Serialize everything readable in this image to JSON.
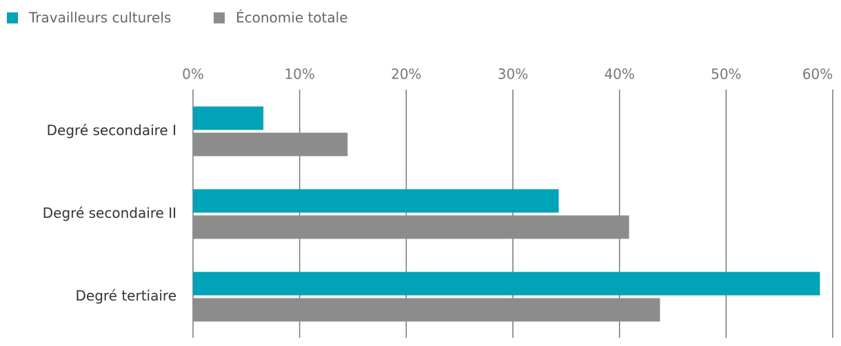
{
  "chart_data": {
    "type": "hbar",
    "categories": [
      "Degré secondaire I",
      "Degré secondaire II",
      "Degré tertiaire"
    ],
    "series": [
      {
        "name": "Travailleurs culturels",
        "color": "#00a3b8",
        "values": [
          6.6,
          34.3,
          58.8
        ]
      },
      {
        "name": "Économie totale",
        "color": "#8c8c8c",
        "values": [
          14.5,
          40.9,
          43.8
        ]
      }
    ],
    "xlim": [
      0,
      60
    ],
    "xticks": [
      {
        "value": 0,
        "label": "0%"
      },
      {
        "value": 10,
        "label": "10%"
      },
      {
        "value": 20,
        "label": "20%"
      },
      {
        "value": 30,
        "label": "30%"
      },
      {
        "value": 40,
        "label": "40%"
      },
      {
        "value": 50,
        "label": "50%"
      },
      {
        "value": 60,
        "label": "60%"
      }
    ],
    "grid": true,
    "legend": "top-left"
  }
}
